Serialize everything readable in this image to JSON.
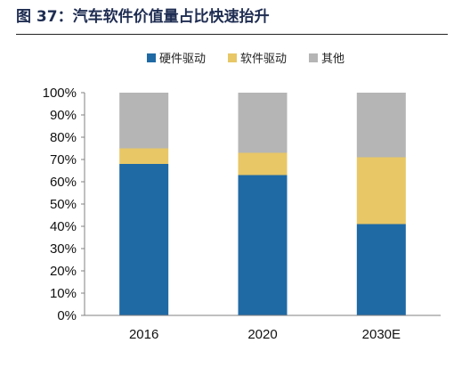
{
  "figure": {
    "title": "图 37：汽车软件价值量占比快速抬升"
  },
  "chart_data": {
    "type": "bar",
    "stacked": true,
    "categories": [
      "2016",
      "2020",
      "2030E"
    ],
    "series": [
      {
        "name": "硬件驱动",
        "color": "#1f6aa5",
        "values": [
          68,
          63,
          41
        ]
      },
      {
        "name": "软件驱动",
        "color": "#e8c766",
        "values": [
          7,
          10,
          30
        ]
      },
      {
        "name": "其他",
        "color": "#b5b5b5",
        "values": [
          25,
          27,
          29
        ]
      }
    ],
    "ylim": [
      0,
      100
    ],
    "yticks": [
      "0%",
      "10%",
      "20%",
      "30%",
      "40%",
      "50%",
      "60%",
      "70%",
      "80%",
      "90%",
      "100%"
    ],
    "legend_position": "top",
    "grid": false,
    "xlabel": "",
    "ylabel": ""
  }
}
